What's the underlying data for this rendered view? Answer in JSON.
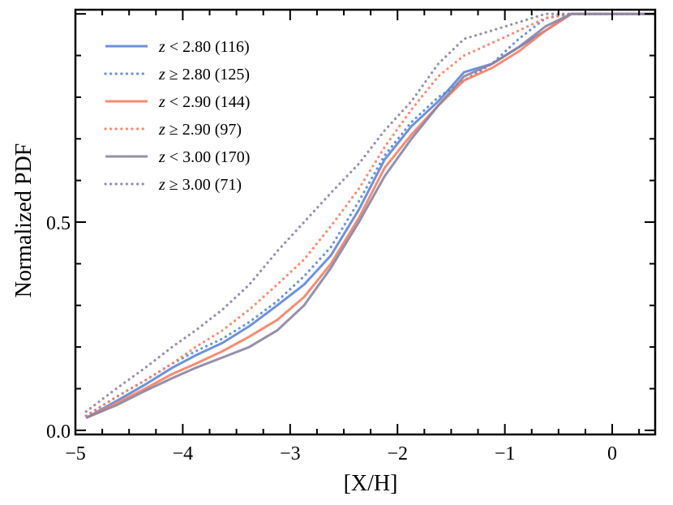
{
  "chart_data": {
    "type": "line",
    "xlabel": "[X/H]",
    "ylabel": "Normalized PDF",
    "xlim": [
      -5.0,
      0.4
    ],
    "ylim": [
      -0.01,
      1.01
    ],
    "x_ticks": [
      -5,
      -4,
      -3,
      -2,
      -1,
      0
    ],
    "x_tick_labels": [
      "−5",
      "−4",
      "−3",
      "−2",
      "−1",
      "0"
    ],
    "y_ticks": [
      0.0,
      0.5
    ],
    "y_tick_labels": [
      "0.0",
      "0.5"
    ],
    "legend_position": "top-left",
    "colors": {
      "blue": "#5b86d9",
      "orange": "#f57f63",
      "purple": "#8a84a2"
    },
    "series": [
      {
        "name": "z < 2.80 (116)",
        "legend_var": "z",
        "legend_rest": " < 2.80 (116)",
        "color": "blue",
        "style": "solid",
        "x": [
          -4.9,
          -4.62,
          -4.35,
          -4.1,
          -3.88,
          -3.63,
          -3.38,
          -3.12,
          -2.87,
          -2.62,
          -2.36,
          -2.12,
          -1.87,
          -1.62,
          -1.38,
          -1.12,
          -0.87,
          -0.62,
          -0.38,
          -0.1,
          0.2,
          0.4
        ],
        "y": [
          0.03,
          0.07,
          0.11,
          0.15,
          0.18,
          0.21,
          0.25,
          0.3,
          0.35,
          0.42,
          0.53,
          0.65,
          0.73,
          0.79,
          0.86,
          0.88,
          0.92,
          0.96,
          1.0,
          1.0,
          1.0,
          1.0
        ]
      },
      {
        "name": "z ≥ 2.80 (125)",
        "legend_var": "z",
        "legend_rest": " ≥ 2.80 (125)",
        "color": "blue",
        "style": "dotted",
        "x": [
          -4.9,
          -4.62,
          -4.35,
          -4.1,
          -3.88,
          -3.63,
          -3.38,
          -3.12,
          -2.87,
          -2.62,
          -2.36,
          -2.12,
          -1.87,
          -1.62,
          -1.38,
          -1.12,
          -0.87,
          -0.62,
          -0.38,
          -0.1,
          0.2,
          0.4
        ],
        "y": [
          0.035,
          0.08,
          0.12,
          0.16,
          0.19,
          0.22,
          0.26,
          0.31,
          0.37,
          0.44,
          0.55,
          0.66,
          0.74,
          0.8,
          0.84,
          0.88,
          0.94,
          0.99,
          1.0,
          1.0,
          1.0,
          1.0
        ]
      },
      {
        "name": "z < 2.90 (144)",
        "legend_var": "z",
        "legend_rest": " < 2.90 (144)",
        "color": "orange",
        "style": "solid",
        "x": [
          -4.9,
          -4.62,
          -4.35,
          -4.1,
          -3.88,
          -3.63,
          -3.38,
          -3.12,
          -2.87,
          -2.62,
          -2.36,
          -2.12,
          -1.87,
          -1.62,
          -1.38,
          -1.12,
          -0.87,
          -0.62,
          -0.38,
          -0.1,
          0.2,
          0.4
        ],
        "y": [
          0.03,
          0.065,
          0.1,
          0.135,
          0.16,
          0.19,
          0.225,
          0.265,
          0.32,
          0.4,
          0.51,
          0.63,
          0.71,
          0.78,
          0.84,
          0.87,
          0.91,
          0.96,
          1.0,
          1.0,
          1.0,
          1.0
        ]
      },
      {
        "name": "z ≥ 2.90 (97)",
        "legend_var": "z",
        "legend_rest": " ≥ 2.90 (97)",
        "color": "orange",
        "style": "dotted",
        "x": [
          -4.9,
          -4.62,
          -4.35,
          -4.1,
          -3.88,
          -3.63,
          -3.38,
          -3.12,
          -2.87,
          -2.62,
          -2.36,
          -2.12,
          -1.87,
          -1.62,
          -1.38,
          -1.12,
          -0.87,
          -0.62,
          -0.38,
          -0.1,
          0.2,
          0.4
        ],
        "y": [
          0.035,
          0.08,
          0.12,
          0.16,
          0.2,
          0.24,
          0.29,
          0.35,
          0.41,
          0.49,
          0.58,
          0.68,
          0.77,
          0.85,
          0.9,
          0.93,
          0.96,
          0.99,
          1.0,
          1.0,
          1.0,
          1.0
        ]
      },
      {
        "name": "z < 3.00 (170)",
        "legend_var": "z",
        "legend_rest": " < 3.00 (170)",
        "color": "purple",
        "style": "solid",
        "x": [
          -4.9,
          -4.62,
          -4.35,
          -4.1,
          -3.88,
          -3.63,
          -3.38,
          -3.12,
          -2.87,
          -2.62,
          -2.36,
          -2.12,
          -1.87,
          -1.62,
          -1.38,
          -1.12,
          -0.87,
          -0.62,
          -0.38,
          -0.1,
          0.2,
          0.4
        ],
        "y": [
          0.03,
          0.06,
          0.095,
          0.125,
          0.15,
          0.175,
          0.2,
          0.24,
          0.3,
          0.39,
          0.5,
          0.61,
          0.7,
          0.78,
          0.85,
          0.88,
          0.92,
          0.97,
          1.0,
          1.0,
          1.0,
          1.0
        ]
      },
      {
        "name": "z ≥ 3.00 (71)",
        "legend_var": "z",
        "legend_rest": " ≥ 3.00 (71)",
        "color": "purple",
        "style": "dotted",
        "x": [
          -4.9,
          -4.62,
          -4.35,
          -4.1,
          -3.88,
          -3.63,
          -3.38,
          -3.12,
          -2.87,
          -2.62,
          -2.36,
          -2.12,
          -1.87,
          -1.62,
          -1.38,
          -1.12,
          -0.87,
          -0.62,
          -0.38,
          -0.1,
          0.2,
          0.4
        ],
        "y": [
          0.045,
          0.1,
          0.15,
          0.2,
          0.24,
          0.29,
          0.35,
          0.43,
          0.5,
          0.57,
          0.64,
          0.72,
          0.79,
          0.88,
          0.94,
          0.96,
          0.98,
          1.0,
          1.0,
          1.0,
          1.0,
          1.0
        ]
      }
    ]
  }
}
